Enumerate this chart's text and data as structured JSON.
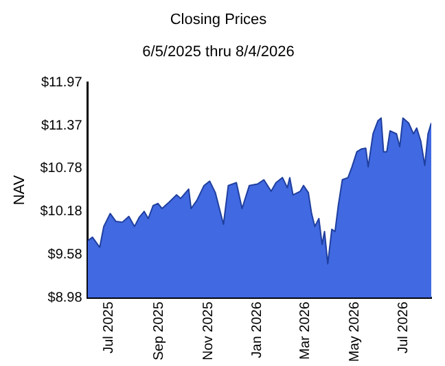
{
  "chart_data": {
    "type": "area",
    "title": "Closing Prices",
    "subtitle": "6/5/2025 thru 8/4/2026",
    "ylabel": "NAV",
    "x": [
      "2025-06-05",
      "2025-06-11",
      "2025-06-20",
      "2025-06-25",
      "2025-07-03",
      "2025-07-10",
      "2025-07-18",
      "2025-07-26",
      "2025-08-02",
      "2025-08-08",
      "2025-08-14",
      "2025-08-19",
      "2025-08-25",
      "2025-08-31",
      "2025-09-05",
      "2025-09-14",
      "2025-09-23",
      "2025-09-28",
      "2025-10-08",
      "2025-10-11",
      "2025-10-18",
      "2025-10-27",
      "2025-11-03",
      "2025-11-10",
      "2025-11-20",
      "2025-11-26",
      "2025-12-06",
      "2025-12-13",
      "2025-12-22",
      "2026-01-01",
      "2026-01-09",
      "2026-01-18",
      "2026-01-24",
      "2026-02-01",
      "2026-02-07",
      "2026-02-10",
      "2026-02-14",
      "2026-02-23",
      "2026-02-27",
      "2026-03-05",
      "2026-03-09",
      "2026-03-13",
      "2026-03-18",
      "2026-03-22",
      "2026-03-25",
      "2026-03-29",
      "2026-04-03",
      "2026-04-07",
      "2026-04-11",
      "2026-04-16",
      "2026-04-23",
      "2026-04-28",
      "2026-05-04",
      "2026-05-10",
      "2026-05-15",
      "2026-05-18",
      "2026-05-24",
      "2026-05-30",
      "2026-06-03",
      "2026-06-06",
      "2026-06-10",
      "2026-06-14",
      "2026-06-22",
      "2026-06-26",
      "2026-06-30",
      "2026-07-07",
      "2026-07-13",
      "2026-07-17",
      "2026-07-22",
      "2026-07-27",
      "2026-07-31",
      "2026-08-04"
    ],
    "series": [
      {
        "color": "#4169e1",
        "values": [
          9.77,
          9.82,
          9.68,
          9.97,
          10.15,
          10.04,
          10.03,
          10.11,
          9.97,
          10.1,
          10.18,
          10.08,
          10.26,
          10.29,
          10.22,
          10.31,
          10.41,
          10.36,
          10.49,
          10.22,
          10.33,
          10.54,
          10.6,
          10.44,
          10.0,
          10.54,
          10.58,
          10.22,
          10.54,
          10.56,
          10.62,
          10.46,
          10.58,
          10.65,
          10.51,
          10.65,
          10.41,
          10.46,
          10.54,
          10.44,
          10.15,
          9.97,
          10.08,
          9.72,
          9.9,
          9.45,
          9.93,
          9.9,
          10.26,
          10.62,
          10.65,
          10.8,
          11.01,
          11.05,
          11.06,
          10.8,
          11.26,
          11.44,
          11.48,
          11.01,
          11.01,
          11.3,
          11.26,
          11.08,
          11.48,
          11.41,
          11.26,
          11.34,
          11.16,
          10.82,
          11.26,
          11.41
        ]
      }
    ],
    "xlim": [
      "2025-06-05",
      "2026-08-04"
    ],
    "xticks": [
      {
        "value": "2025-07-01",
        "label": "Jul 2025"
      },
      {
        "value": "2025-09-01",
        "label": "Sep 2025"
      },
      {
        "value": "2025-11-01",
        "label": "Nov 2025"
      },
      {
        "value": "2026-01-01",
        "label": "Jan 2026"
      },
      {
        "value": "2026-03-01",
        "label": "Mar 2026"
      },
      {
        "value": "2026-05-01",
        "label": "May 2026"
      },
      {
        "value": "2026-07-01",
        "label": "Jul 2026"
      }
    ],
    "ylim": [
      8.98,
      11.97
    ],
    "yticks": [
      {
        "value": 8.98,
        "label": "$8.98"
      },
      {
        "value": 9.58,
        "label": "$9.58"
      },
      {
        "value": 10.18,
        "label": "$10.18"
      },
      {
        "value": 10.78,
        "label": "$10.78"
      },
      {
        "value": 11.37,
        "label": "$11.37"
      },
      {
        "value": 11.97,
        "label": "$11.97"
      }
    ],
    "grid": false,
    "legend": false
  }
}
